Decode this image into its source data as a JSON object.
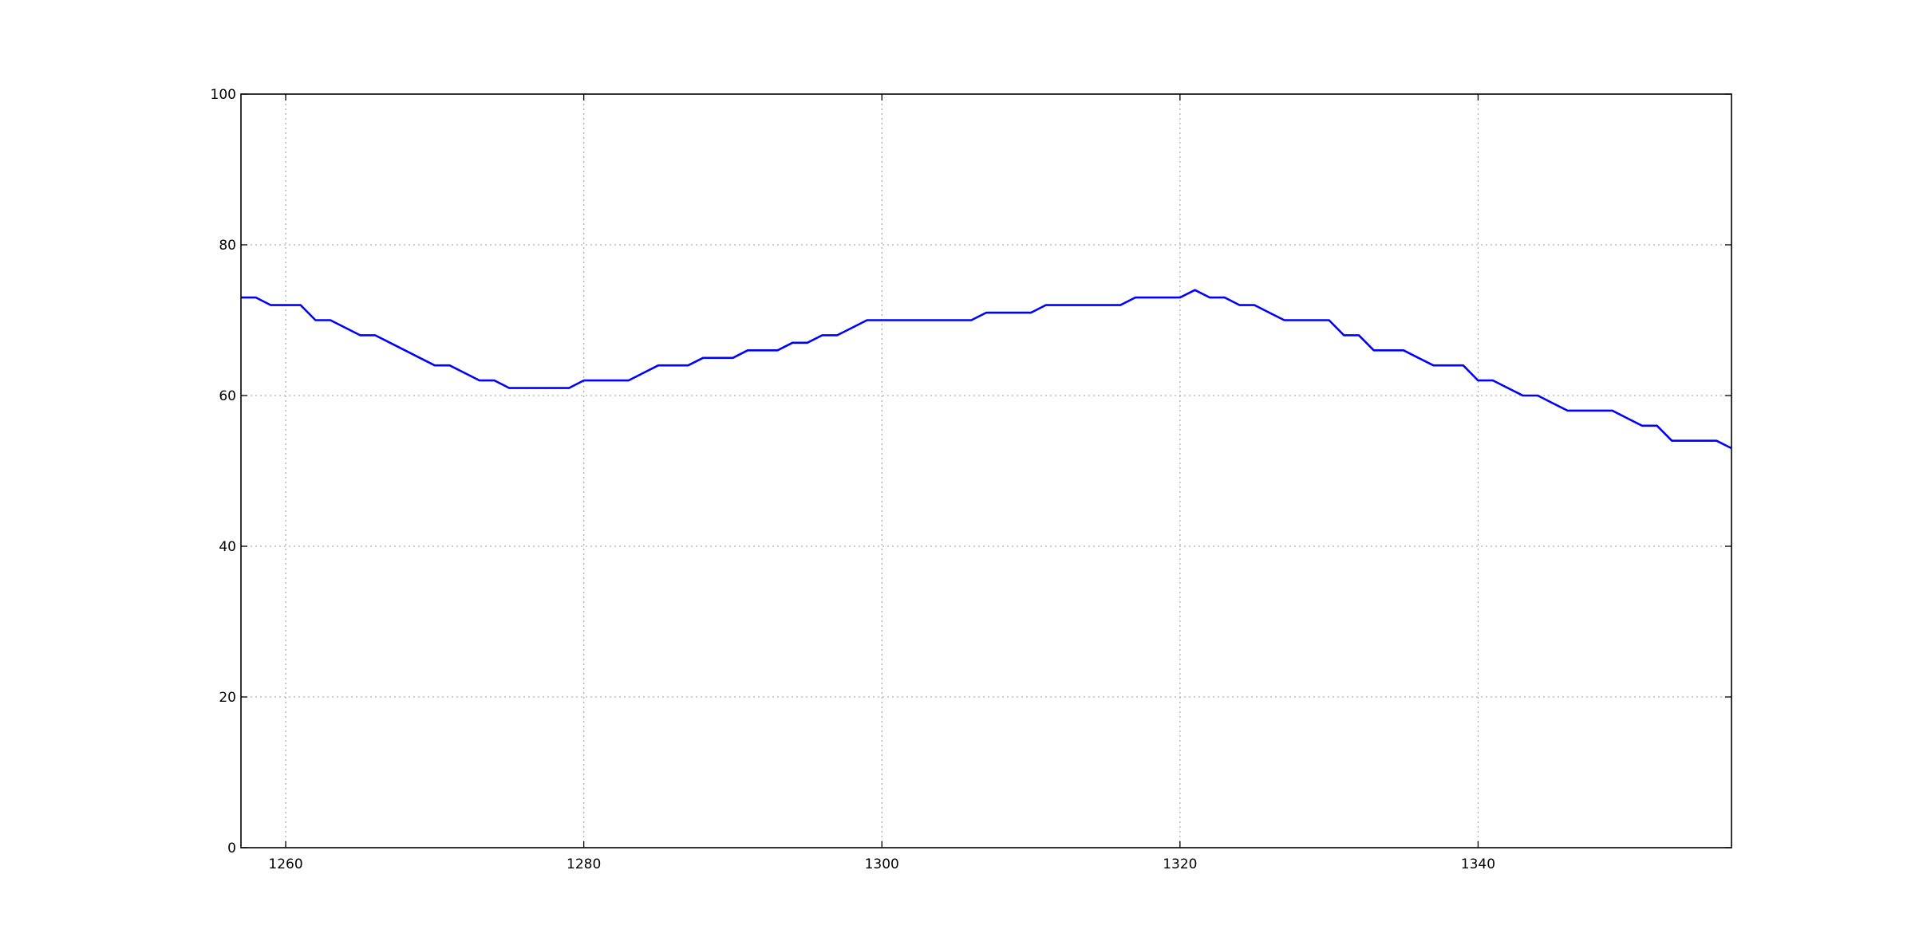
{
  "chart_data": {
    "type": "line",
    "title": "",
    "xlabel": "",
    "ylabel": "",
    "xlim": [
      1257,
      1357
    ],
    "ylim": [
      0,
      100
    ],
    "x_ticks": [
      1260,
      1280,
      1300,
      1320,
      1340
    ],
    "x_tick_labels": [
      "1260",
      "1280",
      "1300",
      "1320",
      "1340"
    ],
    "y_ticks": [
      0,
      20,
      40,
      60,
      80,
      100
    ],
    "y_tick_labels": [
      "0",
      "20",
      "40",
      "60",
      "80",
      "100"
    ],
    "grid": true,
    "series": [
      {
        "color": "#0000ff",
        "points": [
          [
            1257,
            73
          ],
          [
            1258,
            73
          ],
          [
            1259,
            72
          ],
          [
            1260,
            72
          ],
          [
            1261,
            72
          ],
          [
            1262,
            70
          ],
          [
            1263,
            70
          ],
          [
            1264,
            69
          ],
          [
            1265,
            68
          ],
          [
            1266,
            68
          ],
          [
            1267,
            67
          ],
          [
            1268,
            66
          ],
          [
            1269,
            65
          ],
          [
            1270,
            64
          ],
          [
            1271,
            64
          ],
          [
            1272,
            63
          ],
          [
            1273,
            62
          ],
          [
            1274,
            62
          ],
          [
            1275,
            61
          ],
          [
            1276,
            61
          ],
          [
            1277,
            61
          ],
          [
            1278,
            61
          ],
          [
            1279,
            61
          ],
          [
            1280,
            62
          ],
          [
            1281,
            62
          ],
          [
            1282,
            62
          ],
          [
            1283,
            62
          ],
          [
            1284,
            63
          ],
          [
            1285,
            64
          ],
          [
            1286,
            64
          ],
          [
            1287,
            64
          ],
          [
            1288,
            65
          ],
          [
            1289,
            65
          ],
          [
            1290,
            65
          ],
          [
            1291,
            66
          ],
          [
            1292,
            66
          ],
          [
            1293,
            66
          ],
          [
            1294,
            67
          ],
          [
            1295,
            67
          ],
          [
            1296,
            68
          ],
          [
            1297,
            68
          ],
          [
            1298,
            69
          ],
          [
            1299,
            70
          ],
          [
            1300,
            70
          ],
          [
            1301,
            70
          ],
          [
            1302,
            70
          ],
          [
            1303,
            70
          ],
          [
            1304,
            70
          ],
          [
            1305,
            70
          ],
          [
            1306,
            70
          ],
          [
            1307,
            71
          ],
          [
            1308,
            71
          ],
          [
            1309,
            71
          ],
          [
            1310,
            71
          ],
          [
            1311,
            72
          ],
          [
            1312,
            72
          ],
          [
            1313,
            72
          ],
          [
            1314,
            72
          ],
          [
            1315,
            72
          ],
          [
            1316,
            72
          ],
          [
            1317,
            73
          ],
          [
            1318,
            73
          ],
          [
            1319,
            73
          ],
          [
            1320,
            73
          ],
          [
            1321,
            74
          ],
          [
            1322,
            73
          ],
          [
            1323,
            73
          ],
          [
            1324,
            72
          ],
          [
            1325,
            72
          ],
          [
            1326,
            71
          ],
          [
            1327,
            70
          ],
          [
            1328,
            70
          ],
          [
            1329,
            70
          ],
          [
            1330,
            70
          ],
          [
            1331,
            68
          ],
          [
            1332,
            68
          ],
          [
            1333,
            66
          ],
          [
            1334,
            66
          ],
          [
            1335,
            66
          ],
          [
            1336,
            65
          ],
          [
            1337,
            64
          ],
          [
            1338,
            64
          ],
          [
            1339,
            64
          ],
          [
            1340,
            62
          ],
          [
            1341,
            62
          ],
          [
            1342,
            61
          ],
          [
            1343,
            60
          ],
          [
            1344,
            60
          ],
          [
            1345,
            59
          ],
          [
            1346,
            58
          ],
          [
            1347,
            58
          ],
          [
            1348,
            58
          ],
          [
            1349,
            58
          ],
          [
            1350,
            57
          ],
          [
            1351,
            56
          ],
          [
            1352,
            56
          ],
          [
            1353,
            54
          ],
          [
            1354,
            54
          ],
          [
            1355,
            54
          ],
          [
            1356,
            54
          ],
          [
            1357,
            53
          ]
        ]
      }
    ]
  }
}
